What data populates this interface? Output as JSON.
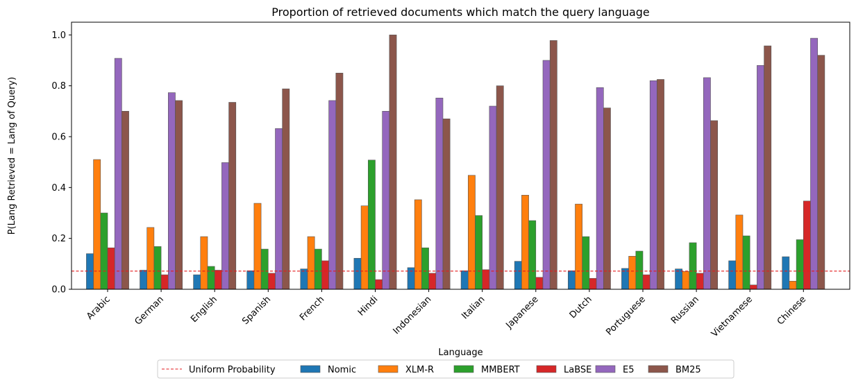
{
  "chart_data": {
    "type": "bar",
    "title": "Proportion of retrieved documents which match the query language",
    "xlabel": "Language",
    "ylabel": "P(Lang Retrieved = Lang of Query)",
    "ylim": [
      0,
      1.05
    ],
    "yticks": [
      "0.0",
      "0.2",
      "0.4",
      "0.6",
      "0.8",
      "1.0"
    ],
    "categories": [
      "Arabic",
      "German",
      "English",
      "Spanish",
      "French",
      "Hindi",
      "Indonesian",
      "Italian",
      "Japanese",
      "Dutch",
      "Portuguese",
      "Russian",
      "Vietnamese",
      "Chinese"
    ],
    "series": [
      {
        "name": "Nomic",
        "color": "#1f77b4",
        "values": [
          0.14,
          0.075,
          0.057,
          0.073,
          0.08,
          0.122,
          0.085,
          0.073,
          0.11,
          0.073,
          0.082,
          0.08,
          0.112,
          0.128
        ]
      },
      {
        "name": "XLM-R",
        "color": "#ff7f0e",
        "values": [
          0.51,
          0.243,
          0.207,
          0.338,
          0.207,
          0.328,
          0.352,
          0.448,
          0.37,
          0.335,
          0.13,
          0.07,
          0.292,
          0.032
        ]
      },
      {
        "name": "MMBERT",
        "color": "#2ca02c",
        "values": [
          0.3,
          0.168,
          0.09,
          0.158,
          0.158,
          0.508,
          0.163,
          0.29,
          0.27,
          0.207,
          0.15,
          0.183,
          0.21,
          0.195
        ]
      },
      {
        "name": "LaBSE",
        "color": "#d62728",
        "values": [
          0.163,
          0.057,
          0.075,
          0.063,
          0.112,
          0.038,
          0.063,
          0.077,
          0.047,
          0.043,
          0.057,
          0.063,
          0.017,
          0.347
        ]
      },
      {
        "name": "E5",
        "color": "#9467bd",
        "values": [
          0.908,
          0.773,
          0.498,
          0.632,
          0.742,
          0.7,
          0.752,
          0.72,
          0.9,
          0.793,
          0.82,
          0.832,
          0.88,
          0.987
        ]
      },
      {
        "name": "BM25",
        "color": "#8c564b",
        "values": [
          0.7,
          0.742,
          0.735,
          0.788,
          0.85,
          1.0,
          0.67,
          0.8,
          0.978,
          0.713,
          0.825,
          0.663,
          0.957,
          0.92
        ]
      }
    ],
    "reference_line": {
      "name": "Uniform Probability",
      "value": 0.0714,
      "color": "#e31a1c",
      "style": "dashed"
    },
    "legend": {
      "placement": "bottom-center",
      "ncol": 7
    }
  }
}
